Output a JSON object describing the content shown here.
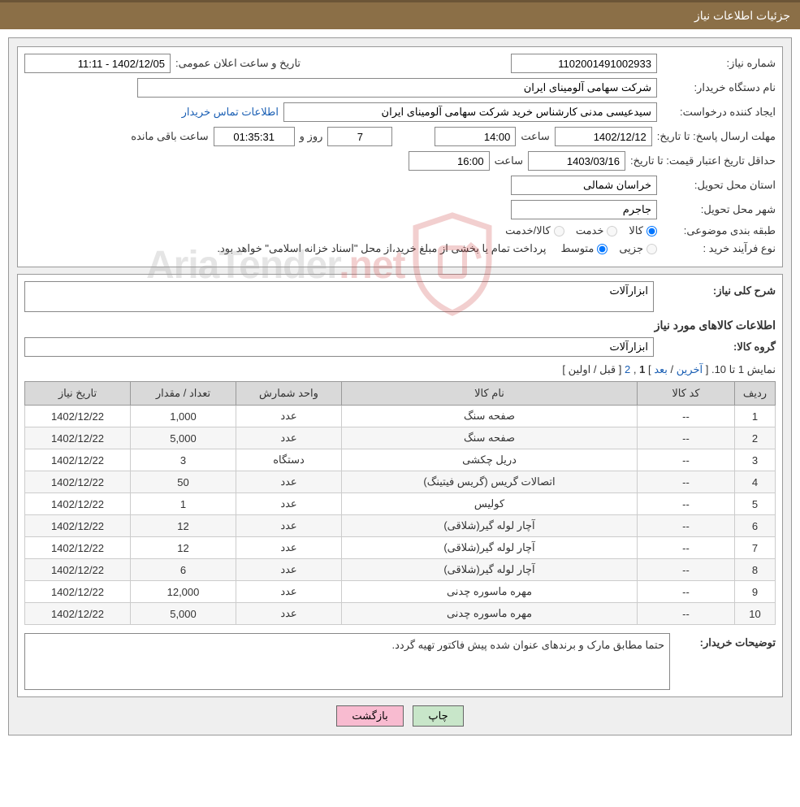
{
  "header": {
    "title": "جزئیات اطلاعات نیاز"
  },
  "info": {
    "need_number_label": "شماره نیاز:",
    "need_number": "1102001491002933",
    "announce_date_label": "تاریخ و ساعت اعلان عمومی:",
    "announce_date": "1402/12/05 - 11:11",
    "buyer_org_label": "نام دستگاه خریدار:",
    "buyer_org": "شرکت سهامی آلومینای ایران",
    "requester_label": "ایجاد کننده درخواست:",
    "requester": "سیدعیسی مدنی کارشناس خرید شرکت سهامی آلومینای ایران",
    "buyer_contact_link": "اطلاعات تماس خریدار",
    "reply_deadline_label": "مهلت ارسال پاسخ:",
    "to_date_label": "تا تاریخ:",
    "reply_date": "1402/12/12",
    "time_label": "ساعت",
    "reply_time": "14:00",
    "days_and_label": "روز و",
    "days_remaining": "7",
    "countdown": "01:35:31",
    "hours_remaining_label": "ساعت باقی مانده",
    "price_validity_label": "حداقل تاریخ اعتبار قیمت:",
    "price_validity_date": "1403/03/16",
    "price_validity_time": "16:00",
    "delivery_province_label": "استان محل تحویل:",
    "delivery_province": "خراسان شمالی",
    "delivery_city_label": "شهر محل تحویل:",
    "delivery_city": "جاجرم",
    "classification_label": "طبقه بندی موضوعی:",
    "class_goods": "کالا",
    "class_service": "خدمت",
    "class_goods_service": "کالا/خدمت",
    "purchase_type_label": "نوع فرآیند خرید :",
    "purchase_minor": "جزیی",
    "purchase_medium": "متوسط",
    "purchase_note": "پرداخت تمام یا بخشی از مبلغ خرید،از محل \"اسناد خزانه اسلامی\" خواهد بود."
  },
  "need": {
    "general_desc_label": "شرح کلی نیاز:",
    "general_desc": "ابزارآلات",
    "items_info_title": "اطلاعات کالاهای مورد نیاز",
    "goods_group_label": "گروه کالا:",
    "goods_group": "ابزارآلات"
  },
  "pager": {
    "text_prefix": "نمایش 1 تا 10. [",
    "last": "آخرین",
    "sep1": " / ",
    "next": "بعد",
    "sep2": "] ",
    "current": "1",
    "comma": ", ",
    "page2": "2",
    "sep3": " [",
    "prev": "قبل",
    "sep4": " / ",
    "first": "اولین",
    "close": "]"
  },
  "table": {
    "columns": [
      "ردیف",
      "کد کالا",
      "نام کالا",
      "واحد شمارش",
      "تعداد / مقدار",
      "تاریخ نیاز"
    ],
    "rows": [
      [
        "1",
        "--",
        "صفحه سنگ",
        "عدد",
        "1,000",
        "1402/12/22"
      ],
      [
        "2",
        "--",
        "صفحه سنگ",
        "عدد",
        "5,000",
        "1402/12/22"
      ],
      [
        "3",
        "--",
        "دریل چکشی",
        "دستگاه",
        "3",
        "1402/12/22"
      ],
      [
        "4",
        "--",
        "اتصالات گریس (گریس فیتینگ)",
        "عدد",
        "50",
        "1402/12/22"
      ],
      [
        "5",
        "--",
        "کولیس",
        "عدد",
        "1",
        "1402/12/22"
      ],
      [
        "6",
        "--",
        "آچار لوله گیر(شلاقی)",
        "عدد",
        "12",
        "1402/12/22"
      ],
      [
        "7",
        "--",
        "آچار لوله گیر(شلاقی)",
        "عدد",
        "12",
        "1402/12/22"
      ],
      [
        "8",
        "--",
        "آچار لوله گیر(شلاقی)",
        "عدد",
        "6",
        "1402/12/22"
      ],
      [
        "9",
        "--",
        "مهره ماسوره چدنی",
        "عدد",
        "12,000",
        "1402/12/22"
      ],
      [
        "10",
        "--",
        "مهره ماسوره چدنی",
        "عدد",
        "5,000",
        "1402/12/22"
      ]
    ]
  },
  "buyer_notes": {
    "label": "توضیحات خریدار:",
    "text": "حتما مطابق مارک و برندهای عنوان شده پیش فاکتور تهیه گردد."
  },
  "buttons": {
    "print": "چاپ",
    "back": "بازگشت"
  },
  "watermark": {
    "text1": "AriaTender",
    "text2": ".net"
  },
  "colors": {
    "header_bg": "#8b6f47",
    "panel_bg": "#efefef",
    "link": "#1a5fb4",
    "th_bg": "#d9d9d9"
  }
}
